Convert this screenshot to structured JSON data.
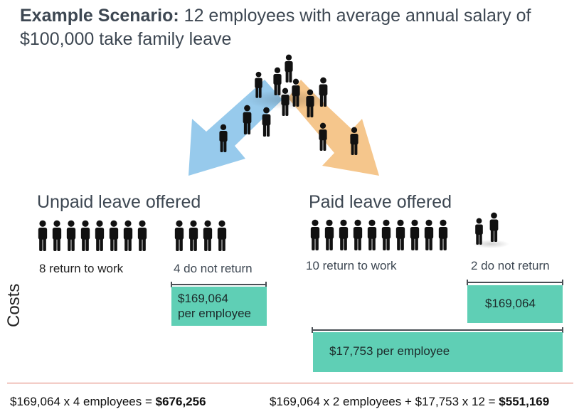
{
  "title": {
    "bold": "Example Scenario:",
    "line1": "12 employees with average annual salary of",
    "line2": "$100,000  take family leave"
  },
  "arrows": {
    "unpaid_color": "#8cc4ea",
    "paid_color": "#f4c07f",
    "people_color": "#111111"
  },
  "unpaid": {
    "heading": "Unpaid leave offered",
    "returners_label": "8 return to work",
    "returners_count": 8,
    "leavers_label": "4 do not return",
    "leavers_count": 4,
    "cost_amount": "$169,064",
    "cost_note": "per employee",
    "formula_prefix": "$169,064 x 4 employees = ",
    "formula_total": "$676,256"
  },
  "paid": {
    "heading": "Paid leave offered",
    "returners_label": "10 return to work",
    "returners_count": 10,
    "leavers_label": "2 do not return",
    "leavers_count": 2,
    "turnover_cost": "$169,064",
    "leave_cost": "$17,753 per employee",
    "formula_prefix": "$169,064 x 2 employees + $17,753 x 12 = ",
    "formula_total": "$551,169"
  },
  "axis_label": "Costs",
  "colors": {
    "cost_box": "#5fcfb5",
    "divider": "#e07a6a",
    "bracket": "#4a4f55"
  }
}
